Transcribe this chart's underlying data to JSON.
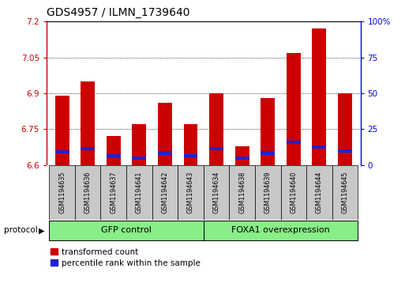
{
  "title": "GDS4957 / ILMN_1739640",
  "samples": [
    "GSM1194635",
    "GSM1194636",
    "GSM1194637",
    "GSM1194641",
    "GSM1194642",
    "GSM1194643",
    "GSM1194634",
    "GSM1194638",
    "GSM1194639",
    "GSM1194640",
    "GSM1194644",
    "GSM1194645"
  ],
  "red_values": [
    6.89,
    6.95,
    6.72,
    6.77,
    6.86,
    6.77,
    6.9,
    6.68,
    6.88,
    7.07,
    7.17,
    6.9
  ],
  "blue_values": [
    6.655,
    6.668,
    6.637,
    6.63,
    6.65,
    6.638,
    6.668,
    6.628,
    6.65,
    6.695,
    6.675,
    6.658
  ],
  "ylim_left": [
    6.6,
    7.2
  ],
  "ylim_right": [
    0,
    100
  ],
  "yticks_left": [
    6.6,
    6.75,
    6.9,
    7.05,
    7.2
  ],
  "yticks_right": [
    0,
    25,
    50,
    75,
    100
  ],
  "group1_label": "GFP control",
  "group2_label": "FOXA1 overexpression",
  "group1_count": 6,
  "group2_count": 6,
  "protocol_label": "protocol",
  "legend_red": "transformed count",
  "legend_blue": "percentile rank within the sample",
  "bar_color": "#cc0000",
  "blue_color": "#2222cc",
  "group_bg": "#88ee88",
  "sample_bg": "#c8c8c8",
  "bar_width": 0.55,
  "title_fontsize": 10,
  "tick_fontsize": 7.5,
  "label_fontsize": 8,
  "sample_fontsize": 5.8,
  "group_fontsize": 8
}
